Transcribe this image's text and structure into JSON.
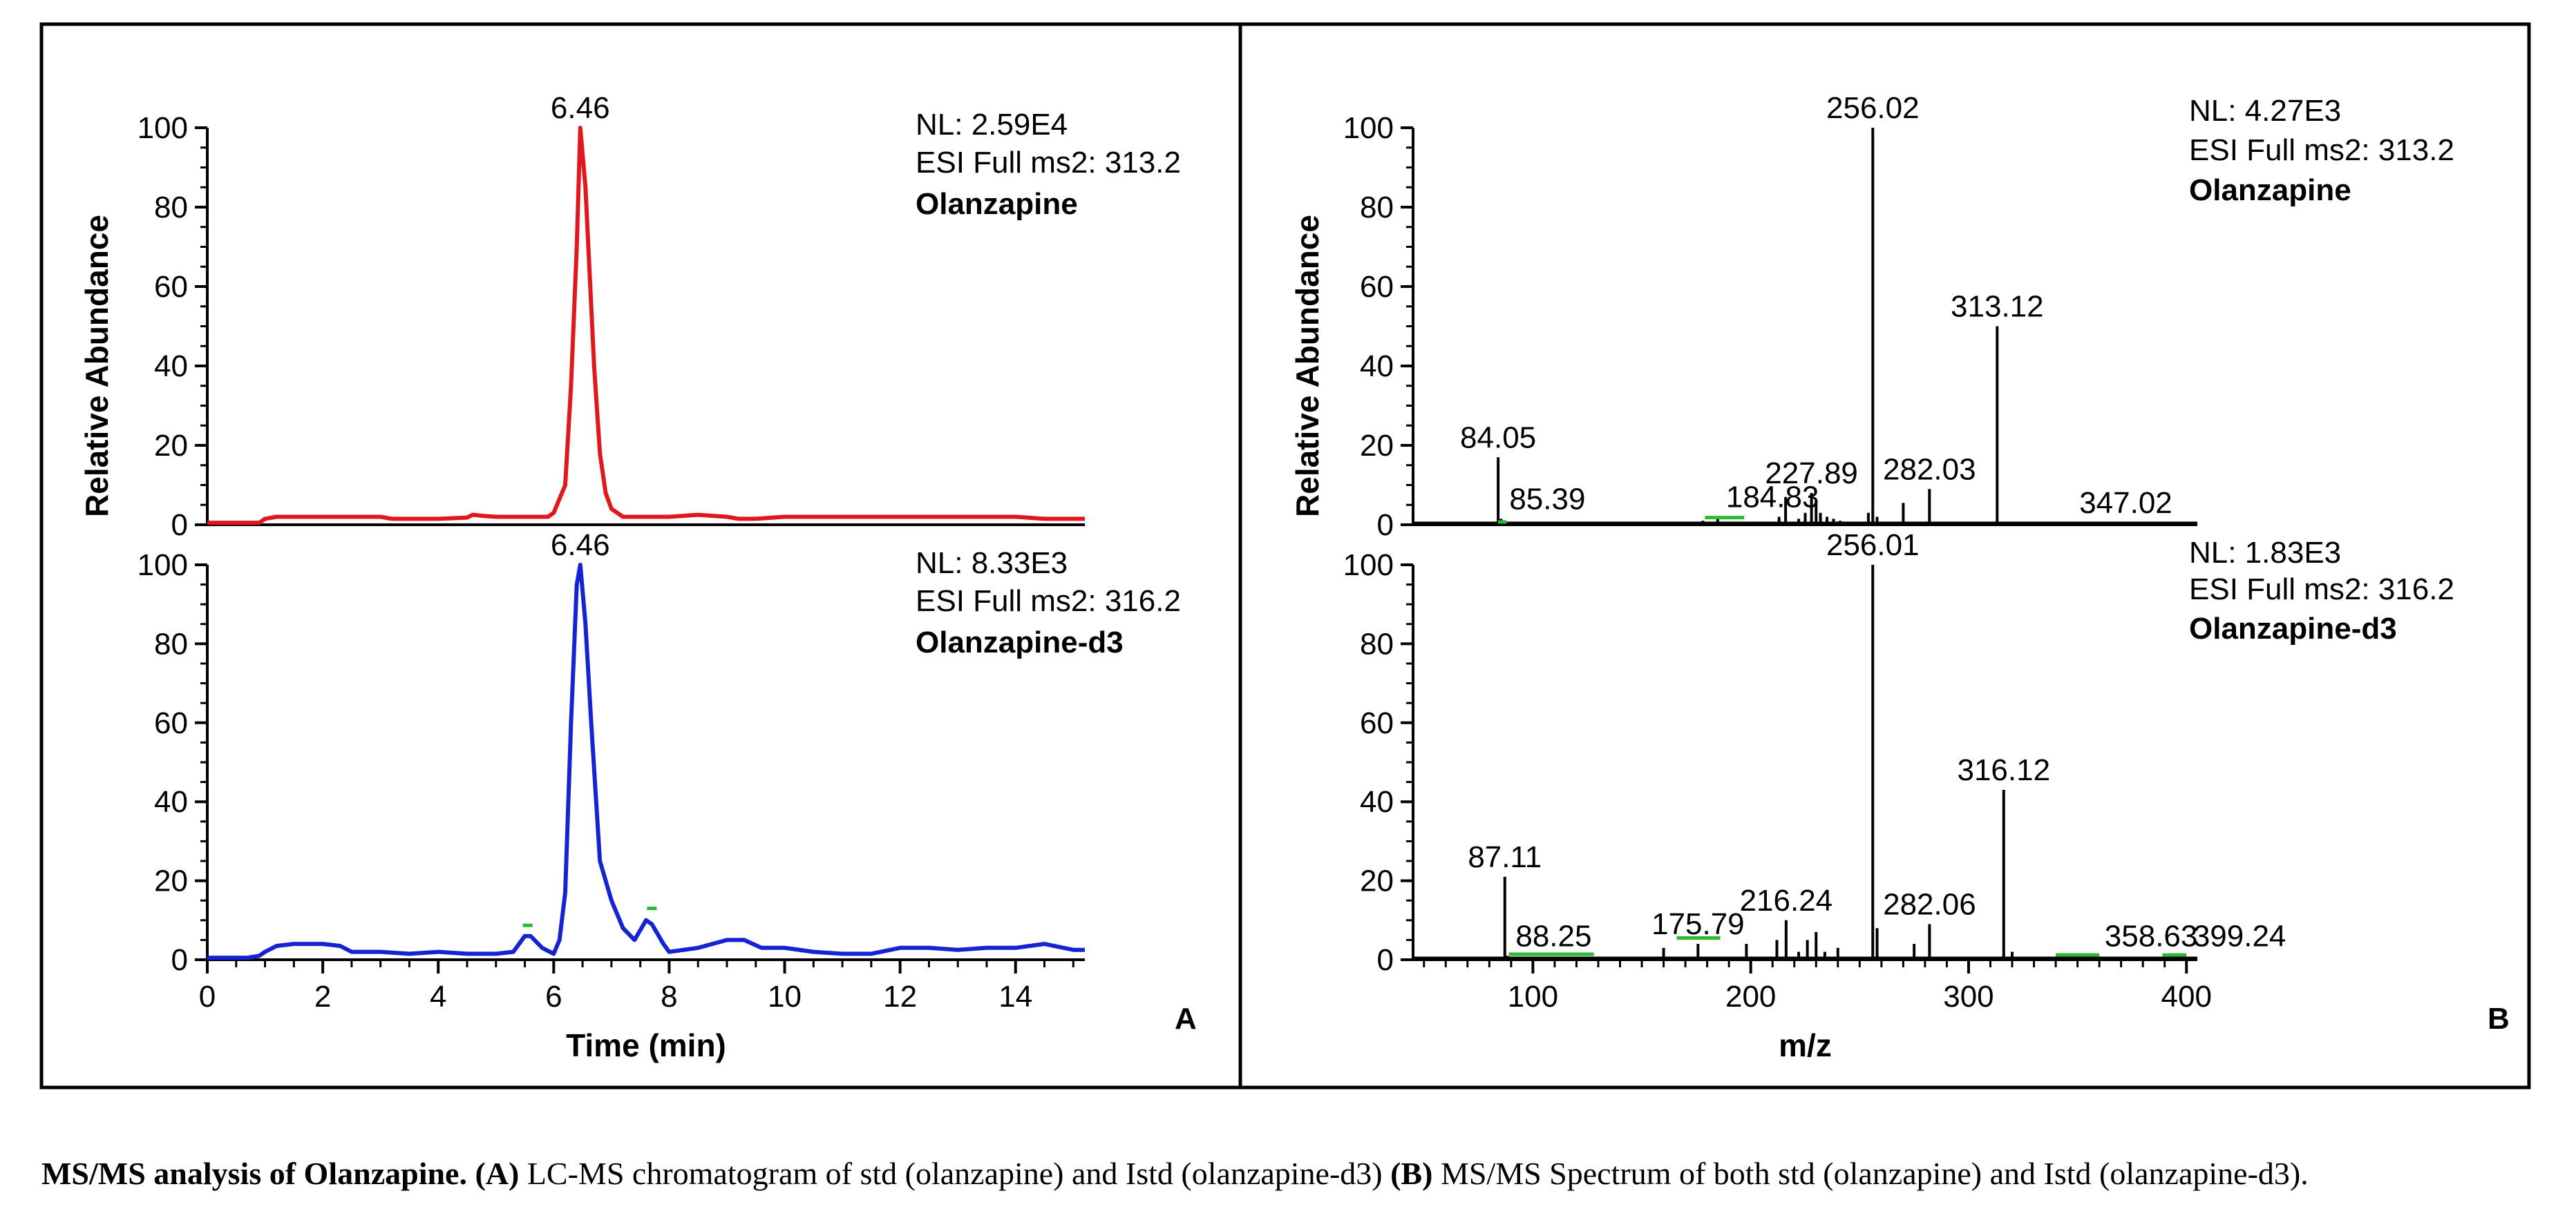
{
  "caption": {
    "lead": "MS/MS analysis of Olanzapine.",
    "a_tag": "(A)",
    "a_text": " LC-MS chromatogram of std (olanzapine) and Istd (olanzapine-d3)  ",
    "b_tag": "(B)",
    "b_text": " MS/MS Spectrum of both std (olanzapine) and Istd (olanzapine-d3)."
  },
  "colors": {
    "red": "#e0181e",
    "blue": "#1424d2",
    "black": "#000000",
    "green": "#2eb82e"
  },
  "chart_data": [
    {
      "id": "A-top",
      "type": "line",
      "panel": "A",
      "ylabel": "Relative Abundance",
      "ylim": [
        0,
        100
      ],
      "yticks": [
        0,
        20,
        40,
        60,
        80,
        100
      ],
      "xlim": [
        0,
        15.2
      ],
      "xlabel": "",
      "xticks": [],
      "series": [
        {
          "color": "#e0181e",
          "x": [
            0,
            0.5,
            0.9,
            1.0,
            1.2,
            2.0,
            3.0,
            3.2,
            3.4,
            4.0,
            4.5,
            4.6,
            4.8,
            5.0,
            5.5,
            5.9,
            6.0,
            6.2,
            6.3,
            6.4,
            6.46,
            6.55,
            6.7,
            6.8,
            6.9,
            7.0,
            7.2,
            7.5,
            8.0,
            8.5,
            9.0,
            9.2,
            9.5,
            10.0,
            11.0,
            12.0,
            13.0,
            14.0,
            14.5,
            15.0,
            15.2
          ],
          "y": [
            0.5,
            0.5,
            0.5,
            1.5,
            2,
            2,
            2,
            1.5,
            1.5,
            1.5,
            1.8,
            2.5,
            2.2,
            2,
            2,
            2,
            3,
            10,
            35,
            70,
            100,
            85,
            40,
            18,
            8,
            4,
            2,
            2,
            2,
            2.5,
            2,
            1.5,
            1.5,
            2,
            2,
            2,
            2,
            2,
            1.5,
            1.5,
            1.5
          ]
        }
      ],
      "peak_label": {
        "x": 6.46,
        "y": 100,
        "text": "6.46"
      },
      "annotations": [
        "NL: 2.59E4",
        "ESI Full ms2: 313.2",
        "Olanzapine"
      ]
    },
    {
      "id": "A-bottom",
      "type": "line",
      "panel": "A",
      "ylabel": "Relative Abundance",
      "ylim": [
        0,
        100
      ],
      "yticks": [
        0,
        20,
        40,
        60,
        80,
        100
      ],
      "xlim": [
        0,
        15.2
      ],
      "xlabel": "Time (min)",
      "xticks": [
        0,
        2,
        4,
        6,
        8,
        10,
        12,
        14
      ],
      "series": [
        {
          "color": "#1424d2",
          "x": [
            0,
            0.7,
            0.9,
            1.0,
            1.2,
            1.5,
            2.0,
            2.3,
            2.5,
            3.0,
            3.5,
            4.0,
            4.5,
            5.0,
            5.3,
            5.5,
            5.6,
            5.8,
            6.0,
            6.1,
            6.2,
            6.3,
            6.4,
            6.46,
            6.55,
            6.65,
            6.8,
            7.0,
            7.2,
            7.4,
            7.6,
            7.7,
            7.9,
            8.0,
            8.5,
            9.0,
            9.3,
            9.6,
            10.0,
            10.5,
            11.0,
            11.5,
            12.0,
            12.5,
            13.0,
            13.5,
            14.0,
            14.5,
            15.0,
            15.2
          ],
          "y": [
            0.5,
            0.5,
            1,
            2,
            3.5,
            4,
            4,
            3.5,
            2,
            2,
            1.5,
            2,
            1.5,
            1.5,
            2,
            6,
            6,
            3,
            1.5,
            5,
            17,
            60,
            95,
            100,
            85,
            60,
            25,
            15,
            8,
            5,
            10,
            9,
            4,
            2,
            3,
            5,
            5,
            3,
            3,
            2,
            1.5,
            1.5,
            3,
            3,
            2.5,
            3,
            3,
            4,
            2.5,
            2.5
          ]
        }
      ],
      "peak_label": {
        "x": 6.46,
        "y": 100,
        "text": "6.46"
      },
      "minor_marks": [
        {
          "x": 5.55,
          "y": 8.7
        },
        {
          "x": 7.7,
          "y": 13
        }
      ],
      "annotations": [
        "NL: 8.33E3",
        "ESI Full ms2: 316.2",
        "Olanzapine-d3"
      ],
      "panel_label": "A"
    },
    {
      "id": "B-top",
      "type": "bar",
      "panel": "B",
      "ylabel": "Relative Abundance",
      "ylim": [
        0,
        100
      ],
      "yticks": [
        0,
        20,
        40,
        60,
        80,
        100
      ],
      "xlim": [
        45,
        405
      ],
      "xlabel": "",
      "xticks": [],
      "peaks": [
        {
          "x": 84.05,
          "y": 17
        },
        {
          "x": 85.39,
          "y": 1.5
        },
        {
          "x": 178,
          "y": 1
        },
        {
          "x": 184.83,
          "y": 2
        },
        {
          "x": 213,
          "y": 2
        },
        {
          "x": 216,
          "y": 7
        },
        {
          "x": 222,
          "y": 1.5
        },
        {
          "x": 225,
          "y": 3
        },
        {
          "x": 227.89,
          "y": 8
        },
        {
          "x": 230,
          "y": 6
        },
        {
          "x": 232,
          "y": 3
        },
        {
          "x": 235,
          "y": 2
        },
        {
          "x": 238,
          "y": 1.5
        },
        {
          "x": 241,
          "y": 1
        },
        {
          "x": 254,
          "y": 3
        },
        {
          "x": 256.02,
          "y": 100
        },
        {
          "x": 258,
          "y": 2
        },
        {
          "x": 270,
          "y": 5.5
        },
        {
          "x": 282.03,
          "y": 9
        },
        {
          "x": 313.12,
          "y": 50
        },
        {
          "x": 347.02,
          "y": 0.5
        }
      ],
      "peak_labels": [
        {
          "x": 84.05,
          "y": 17,
          "text": "84.05"
        },
        {
          "x": 85.39,
          "y": 1.5,
          "text": "85.39"
        },
        {
          "x": 184.83,
          "y": 2,
          "text": "184.83"
        },
        {
          "x": 227.89,
          "y": 8,
          "text": "227.89"
        },
        {
          "x": 256.02,
          "y": 100,
          "text": "256.02"
        },
        {
          "x": 282.03,
          "y": 9,
          "text": "282.03"
        },
        {
          "x": 313.12,
          "y": 50,
          "text": "313.12"
        },
        {
          "x": 347.02,
          "y": 0.5,
          "text": "347.02"
        }
      ],
      "green_marks": [
        {
          "x1": 84,
          "x2": 88,
          "y": 0.7
        },
        {
          "x1": 179,
          "x2": 197,
          "y": 1.8
        }
      ],
      "annotations": [
        "NL: 4.27E3",
        "ESI Full ms2: 313.2",
        "Olanzapine"
      ]
    },
    {
      "id": "B-bottom",
      "type": "bar",
      "panel": "B",
      "ylabel": "Relative Abundance",
      "ylim": [
        0,
        100
      ],
      "yticks": [
        0,
        20,
        40,
        60,
        80,
        100
      ],
      "xlim": [
        45,
        405
      ],
      "xlabel": "m/z",
      "xticks": [
        100,
        200,
        300,
        400
      ],
      "peaks": [
        {
          "x": 87.11,
          "y": 21
        },
        {
          "x": 88.25,
          "y": 1
        },
        {
          "x": 160,
          "y": 3
        },
        {
          "x": 175.79,
          "y": 4
        },
        {
          "x": 198,
          "y": 4
        },
        {
          "x": 212,
          "y": 5
        },
        {
          "x": 216.24,
          "y": 10
        },
        {
          "x": 222,
          "y": 2
        },
        {
          "x": 226,
          "y": 5
        },
        {
          "x": 230,
          "y": 7
        },
        {
          "x": 234,
          "y": 2
        },
        {
          "x": 240,
          "y": 3
        },
        {
          "x": 256.01,
          "y": 100
        },
        {
          "x": 258,
          "y": 8
        },
        {
          "x": 275,
          "y": 4
        },
        {
          "x": 282.06,
          "y": 9
        },
        {
          "x": 316.12,
          "y": 43
        },
        {
          "x": 320,
          "y": 2
        }
      ],
      "peak_labels": [
        {
          "x": 87.11,
          "y": 21,
          "text": "87.11"
        },
        {
          "x": 88.25,
          "y": 1,
          "text": "88.25"
        },
        {
          "x": 175.79,
          "y": 4,
          "text": "175.79"
        },
        {
          "x": 216.24,
          "y": 10,
          "text": "216.24"
        },
        {
          "x": 256.01,
          "y": 100,
          "text": "256.01"
        },
        {
          "x": 282.06,
          "y": 9,
          "text": "282.06"
        },
        {
          "x": 316.12,
          "y": 43,
          "text": "316.12"
        },
        {
          "x": 358.63,
          "y": 1,
          "text": "358.63"
        },
        {
          "x": 399.24,
          "y": 1,
          "text": "399.24"
        }
      ],
      "green_marks": [
        {
          "x1": 89,
          "x2": 128,
          "y": 1.4
        },
        {
          "x1": 166,
          "x2": 186,
          "y": 5.5
        },
        {
          "x1": 340,
          "x2": 360,
          "y": 1.2
        },
        {
          "x1": 389,
          "x2": 400,
          "y": 1.2
        }
      ],
      "annotations": [
        "NL: 1.83E3",
        "ESI Full ms2: 316.2",
        "Olanzapine-d3"
      ],
      "panel_label": "B"
    }
  ]
}
